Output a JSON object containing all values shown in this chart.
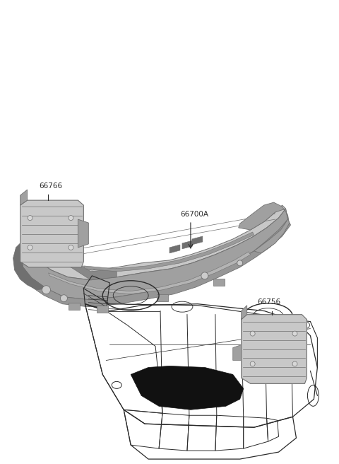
{
  "bg": "#ffffff",
  "lc": "#2a2a2a",
  "gray_light": "#c8c8c8",
  "gray_mid": "#a0a0a0",
  "gray_dark": "#707070",
  "gray_ridge": "#888888",
  "black": "#111111",
  "label_66766": "66766",
  "label_66700A": "66700A",
  "label_66756": "66756",
  "label_fs": 7.5
}
